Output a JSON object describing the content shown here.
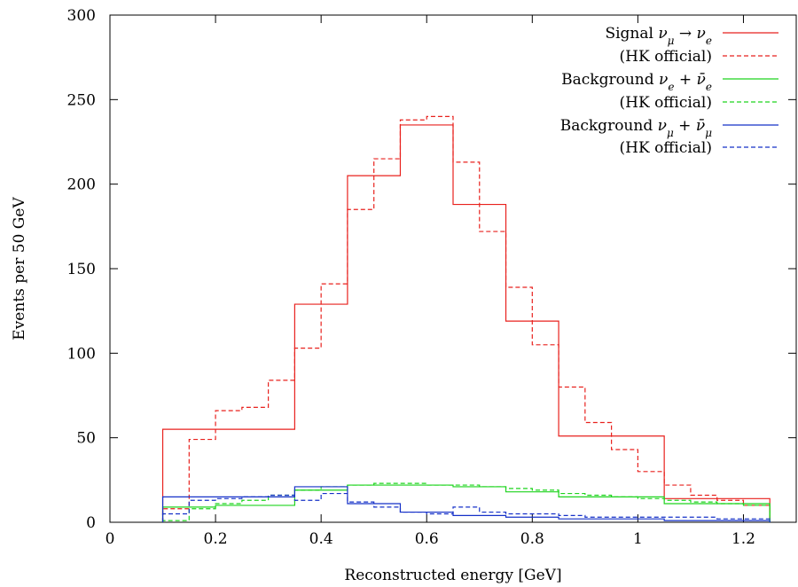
{
  "chart_data": {
    "type": "line",
    "xlabel": "Reconstructed energy [GeV]",
    "ylabel": "Events per 50 GeV",
    "xlim": [
      0,
      1.3
    ],
    "ylim": [
      0,
      300
    ],
    "xticks": [
      "0",
      "0.2",
      "0.4",
      "0.6",
      "0.8",
      "1",
      "1.2"
    ],
    "yticks": [
      "0",
      "50",
      "100",
      "150",
      "200",
      "250",
      "300"
    ],
    "grid": false,
    "legend_position": "top-right",
    "series": [
      {
        "name": "Signal ν_μ → ν_e",
        "color": "#e8211d",
        "dash": "solid",
        "edges": [
          0.1,
          0.35,
          0.45,
          0.55,
          0.65,
          0.75,
          0.85,
          1.05,
          1.25
        ],
        "values": [
          55,
          129,
          205,
          235,
          188,
          119,
          51,
          14
        ]
      },
      {
        "name": "(HK official)",
        "color": "#e8211d",
        "dash": "dashed",
        "edges": [
          0.1,
          0.15,
          0.2,
          0.25,
          0.3,
          0.35,
          0.4,
          0.45,
          0.5,
          0.55,
          0.6,
          0.65,
          0.7,
          0.75,
          0.8,
          0.85,
          0.9,
          0.95,
          1.0,
          1.05,
          1.1,
          1.15,
          1.2,
          1.25
        ],
        "values": [
          8,
          49,
          66,
          68,
          84,
          103,
          141,
          185,
          215,
          238,
          240,
          213,
          172,
          139,
          105,
          80,
          59,
          43,
          30,
          22,
          16,
          13,
          10
        ]
      },
      {
        "name": "Background ν_e + ν̄_e",
        "color": "#1ed41e",
        "dash": "solid",
        "edges": [
          0.1,
          0.2,
          0.35,
          0.45,
          0.65,
          0.75,
          0.85,
          1.05,
          1.25
        ],
        "values": [
          9,
          10,
          19,
          22,
          21,
          18,
          15,
          11
        ]
      },
      {
        "name": "(HK official)",
        "color": "#1ed41e",
        "dash": "dashed",
        "edges": [
          0.1,
          0.15,
          0.2,
          0.25,
          0.3,
          0.35,
          0.4,
          0.45,
          0.5,
          0.55,
          0.6,
          0.65,
          0.7,
          0.75,
          0.8,
          0.85,
          0.9,
          0.95,
          1.0,
          1.05,
          1.1,
          1.15,
          1.2,
          1.25
        ],
        "values": [
          1,
          8,
          11,
          13,
          16,
          19,
          21,
          22,
          23,
          23,
          22,
          22,
          21,
          20,
          19,
          17,
          16,
          15,
          14,
          13,
          12,
          11,
          10
        ]
      },
      {
        "name": "Background ν_μ + ν̄_μ",
        "color": "#1530c8",
        "dash": "solid",
        "edges": [
          0.1,
          0.35,
          0.45,
          0.55,
          0.65,
          0.75,
          0.85,
          1.05,
          1.25
        ],
        "values": [
          15,
          21,
          11,
          6,
          4,
          3,
          2,
          1
        ]
      },
      {
        "name": "(HK official)",
        "color": "#1530c8",
        "dash": "dashed",
        "edges": [
          0.1,
          0.15,
          0.2,
          0.25,
          0.3,
          0.35,
          0.4,
          0.45,
          0.5,
          0.55,
          0.6,
          0.65,
          0.7,
          0.75,
          0.8,
          0.85,
          0.9,
          0.95,
          1.0,
          1.05,
          1.1,
          1.15,
          1.2,
          1.25
        ],
        "values": [
          5,
          13,
          14,
          15,
          16,
          13,
          17,
          12,
          9,
          6,
          5,
          9,
          6,
          5,
          5,
          4,
          3,
          3,
          3,
          3,
          3,
          2,
          2
        ]
      }
    ]
  }
}
